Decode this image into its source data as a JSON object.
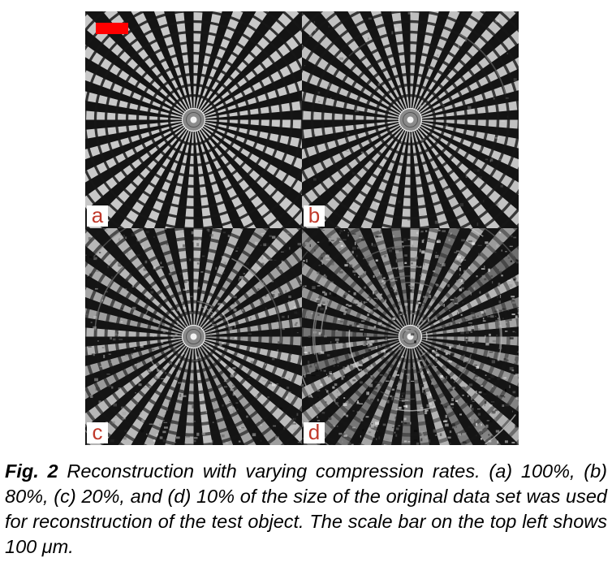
{
  "figure": {
    "scale_bar_color": "#ff0000",
    "label_color": "#c0392b",
    "panels": [
      {
        "label": "a",
        "noise": 0.0
      },
      {
        "label": "b",
        "noise": 0.12
      },
      {
        "label": "c",
        "noise": 0.45
      },
      {
        "label": "d",
        "noise": 0.9
      }
    ]
  },
  "caption": {
    "label": "Fig. 2",
    "text": "Reconstruction with varying compression rates. (a) 100%, (b) 80%, (c) 20%, and (d) 10% of the size of the original data set was used for reconstruction of the test object. The scale bar on the top left shows 100 μm."
  }
}
